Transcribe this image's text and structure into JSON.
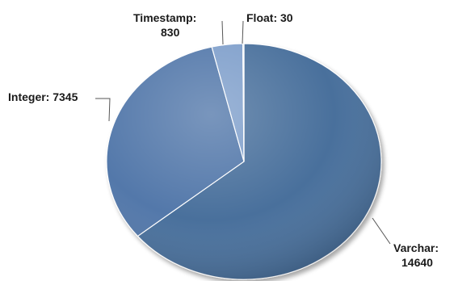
{
  "chart_data": {
    "type": "pie",
    "title": "",
    "slices": [
      {
        "name": "Varchar",
        "value": 14640,
        "label_line1": "Varchar:",
        "label_line2": "14640",
        "color": "#4a6f9c"
      },
      {
        "name": "Integer",
        "value": 7345,
        "label_line1": "Integer: 7345",
        "label_line2": "",
        "color": "#5278aa"
      },
      {
        "name": "Timestamp",
        "value": 830,
        "label_line1": "Timestamp:",
        "label_line2": "830",
        "color": "#7f9fcb"
      },
      {
        "name": "Float",
        "value": 30,
        "label_line1": "Float: 30",
        "label_line2": "",
        "color": "#a9c0dd"
      }
    ],
    "legend": "none",
    "style": "3d-shaded"
  }
}
